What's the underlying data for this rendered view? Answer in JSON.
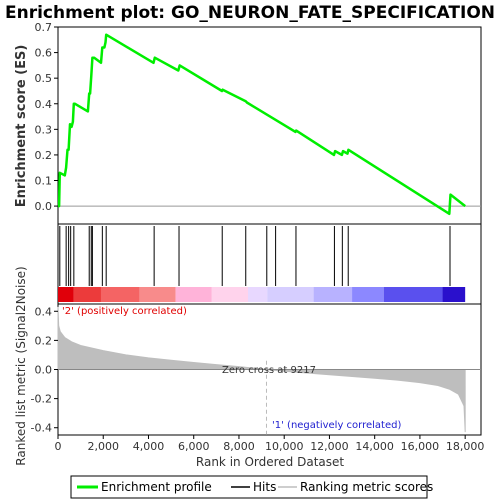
{
  "chart_data": {
    "type": "line",
    "title": "Enrichment plot: GO_NEURON_FATE_SPECIFICATION",
    "top_panel": {
      "ylabel": "Enrichment score (ES)",
      "ylim": [
        -0.07,
        0.7
      ],
      "yticks": [
        "0.0",
        "0.1",
        "0.2",
        "0.3",
        "0.4",
        "0.5",
        "0.6",
        "0.7"
      ],
      "ytick_values": [
        0.0,
        0.1,
        0.2,
        0.3,
        0.4,
        0.5,
        0.6,
        0.7
      ],
      "series": [
        {
          "name": "Enrichment profile",
          "color": "#00ee00",
          "x": [
            0,
            50,
            80,
            300,
            360,
            420,
            470,
            530,
            600,
            660,
            700,
            750,
            1320,
            1380,
            1420,
            1470,
            1520,
            1600,
            1900,
            1960,
            2050,
            2100,
            2130,
            4220,
            4280,
            5320,
            5380,
            7250,
            7280,
            8300,
            8350,
            10500,
            10530,
            12200,
            12250,
            12550,
            12600,
            12800,
            12840,
            17300,
            17350,
            18000
          ],
          "y": [
            0.0,
            0.0,
            0.13,
            0.12,
            0.15,
            0.22,
            0.22,
            0.32,
            0.31,
            0.33,
            0.4,
            0.4,
            0.37,
            0.44,
            0.44,
            0.51,
            0.58,
            0.58,
            0.56,
            0.62,
            0.62,
            0.64,
            0.67,
            0.56,
            0.58,
            0.53,
            0.55,
            0.45,
            0.455,
            0.41,
            0.405,
            0.29,
            0.295,
            0.2,
            0.215,
            0.2,
            0.215,
            0.205,
            0.22,
            -0.03,
            0.045,
            0.0
          ]
        }
      ]
    },
    "hits": {
      "name": "Hits",
      "color": "#000000",
      "positions": [
        80,
        360,
        470,
        560,
        700,
        1380,
        1470,
        1520,
        1960,
        2130,
        4250,
        5350,
        7260,
        8300,
        9230,
        9620,
        10520,
        12220,
        12570,
        12830,
        17330
      ]
    },
    "rank_bar": {
      "colors": [
        "#e0000a",
        "#ec3b3b",
        "#f46464",
        "#f88b8b",
        "#ffb3d9",
        "#ffd3ec",
        "#e8d8ff",
        "#d6ceff",
        "#b8b2ff",
        "#8c88ff",
        "#5a50ee",
        "#2a10cc"
      ],
      "breaks": [
        0,
        700,
        1900,
        3600,
        5200,
        6800,
        8400,
        9250,
        11300,
        13000,
        14400,
        17000,
        18000
      ]
    },
    "bottom_panel": {
      "name": "Ranking metric scores",
      "ylabel": "Ranked list metric (Signal2Noise)",
      "ylim": [
        -0.45,
        0.45
      ],
      "yticks": [
        "0.4",
        "0.2",
        "0.0",
        "-0.2",
        "-0.4"
      ],
      "ytick_values": [
        0.4,
        0.2,
        0.0,
        -0.2,
        -0.4
      ],
      "x": [
        0,
        30,
        100,
        300,
        600,
        1000,
        2000,
        3000,
        4000,
        5000,
        6000,
        7000,
        8000,
        9217,
        10000,
        11000,
        12000,
        13000,
        14000,
        15000,
        16000,
        16800,
        17300,
        17700,
        17950,
        18000
      ],
      "y": [
        0.43,
        0.3,
        0.26,
        0.22,
        0.19,
        0.165,
        0.13,
        0.1,
        0.08,
        0.063,
        0.048,
        0.034,
        0.02,
        0.0,
        -0.012,
        -0.024,
        -0.036,
        -0.048,
        -0.06,
        -0.073,
        -0.09,
        -0.11,
        -0.135,
        -0.17,
        -0.25,
        -0.43
      ],
      "color": "#bebebe",
      "zero_cross_label": "Zero cross at 9217",
      "zero_cross_at": 9217,
      "pos_label": "'2' (positively correlated)",
      "neg_label": "'1' (negatively correlated)",
      "pos_color": "#e00000",
      "neg_color": "#2020d0"
    },
    "xlabel": "Rank in Ordered Dataset",
    "xlim": [
      0,
      18700
    ],
    "xticks": [
      "0",
      "2,000",
      "4,000",
      "6,000",
      "8,000",
      "10,000",
      "12,000",
      "14,000",
      "16,000",
      "18,000"
    ],
    "xtick_values": [
      0,
      2000,
      4000,
      6000,
      8000,
      10000,
      12000,
      14000,
      16000,
      18000
    ],
    "legend": {
      "position": "bottom",
      "items": [
        {
          "label": "Enrichment profile",
          "color": "#00ee00"
        },
        {
          "label": "Hits",
          "color": "#000000"
        },
        {
          "label": "Ranking metric scores",
          "color": "#bebebe"
        }
      ]
    },
    "grid": false
  }
}
